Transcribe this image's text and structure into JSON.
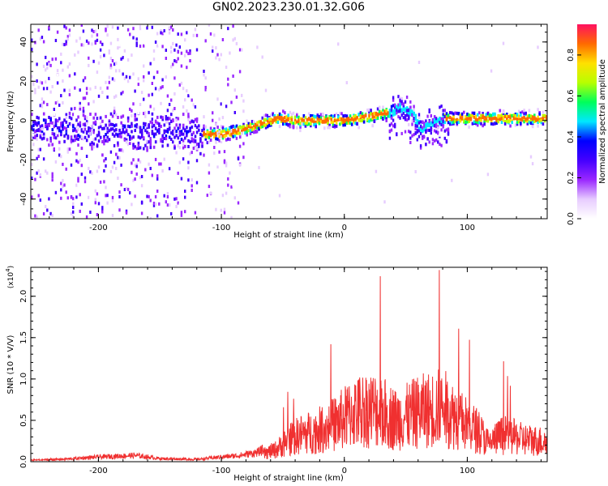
{
  "title": "GN02.2023.230.01.32.G06",
  "chart_data": [
    {
      "type": "heatmap",
      "xlabel": "Height of straight line (km)",
      "ylabel": "Frequency (Hz)",
      "xlim": [
        -255,
        165
      ],
      "ylim": [
        -50,
        49
      ],
      "x_ticks": [
        -200,
        -100,
        0,
        100
      ],
      "x_tick_labels": [
        "-200",
        "-100",
        "0",
        "100"
      ],
      "y_ticks": [
        -40,
        -20,
        0,
        20,
        40
      ],
      "y_tick_labels": [
        "-40",
        "-20",
        "0",
        "20",
        "40"
      ],
      "colorbar": {
        "label": "Normalized spectral amplitude",
        "range": [
          0,
          0.95
        ],
        "ticks": [
          0.0,
          0.2,
          0.4,
          0.6,
          0.8
        ],
        "tick_labels": [
          "0.0",
          "0.2",
          "0.4",
          "0.6",
          "0.8"
        ],
        "colors": [
          "#ffffff",
          "#e7ccff",
          "#9a28ff",
          "#4400ff",
          "#0000ff",
          "#00e8ff",
          "#00ff5a",
          "#b8ff00",
          "#ffe000",
          "#ff6a00",
          "#ff1060"
        ]
      },
      "ridge": {
        "x": [
          -250,
          -200,
          -150,
          -120,
          -100,
          -85,
          -70,
          -55,
          -40,
          -20,
          0,
          20,
          35,
          45,
          55,
          62,
          70,
          80,
          100,
          120,
          140,
          165
        ],
        "y": [
          -4,
          -5,
          -6,
          -7,
          -7,
          -5,
          -2,
          1,
          0,
          0,
          0,
          2,
          4,
          7,
          3,
          -4,
          -2,
          1,
          1,
          1,
          1,
          1
        ]
      },
      "noise_regions": [
        {
          "x": [
            -255,
            -120
          ],
          "level": "high"
        },
        {
          "x": [
            -115,
            -82
          ],
          "level": "medium"
        },
        {
          "x": [
            -80,
            -62
          ],
          "level": "low"
        }
      ]
    },
    {
      "type": "line",
      "xlabel": "Height of straight line (km)",
      "ylabel": "SNR (10 * V/V)",
      "y_multiplier": "(x10",
      "y_multiplier_exp": "4",
      "xlim": [
        -255,
        165
      ],
      "ylim": [
        0,
        2.35
      ],
      "x_ticks": [
        -200,
        -100,
        0,
        100
      ],
      "x_tick_labels": [
        "-200",
        "-100",
        "0",
        "100"
      ],
      "y_ticks": [
        0.0,
        0.5,
        1.0,
        1.5,
        2.0
      ],
      "y_tick_labels": [
        "0.0",
        "0.5",
        "1.0",
        "1.5",
        "2.0"
      ],
      "series": [
        {
          "color": "#f03030",
          "x": [
            -255,
            -230,
            -200,
            -170,
            -150,
            -120,
            -100,
            -85,
            -70,
            -55,
            -45,
            -35,
            -25,
            -15,
            -5,
            5,
            15,
            25,
            35,
            42,
            50,
            60,
            70,
            80,
            90,
            100,
            110,
            118,
            122,
            130,
            145,
            165
          ],
          "y": [
            0.02,
            0.03,
            0.06,
            0.08,
            0.04,
            0.03,
            0.06,
            0.08,
            0.12,
            0.25,
            0.45,
            0.55,
            0.6,
            0.68,
            0.8,
            0.95,
            1.05,
            1.05,
            0.95,
            0.85,
            0.9,
            1.0,
            1.05,
            1.1,
            0.9,
            0.75,
            0.6,
            0.35,
            0.45,
            0.55,
            0.45,
            0.4
          ]
        }
      ]
    }
  ]
}
